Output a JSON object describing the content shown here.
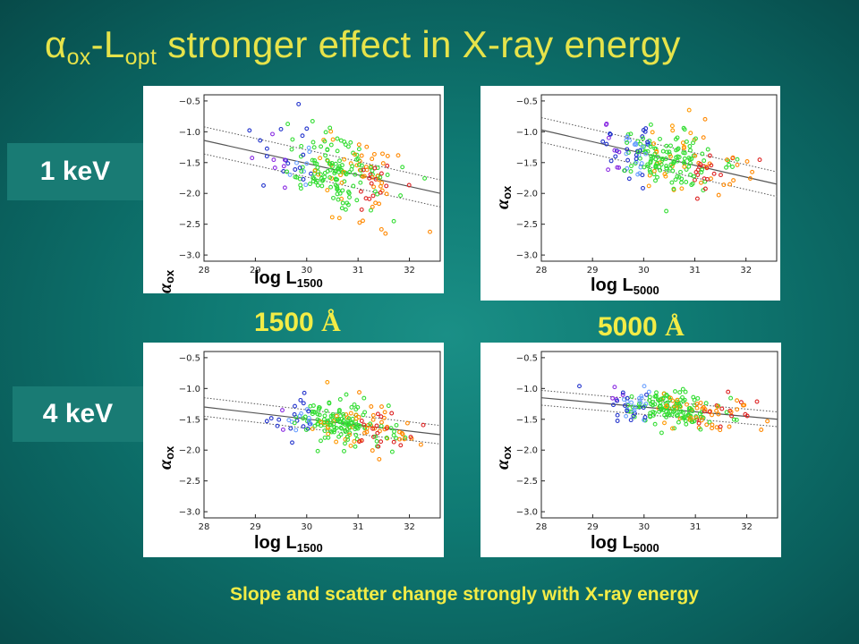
{
  "slide": {
    "title": {
      "alpha": "α",
      "sub1": "ox",
      "mid": "-L",
      "sub2": "opt",
      "rest": " stronger effect in ",
      "xray": "X-ray energy"
    },
    "rows": [
      {
        "label": "1 keV"
      },
      {
        "label": "4 keV"
      }
    ],
    "wavelengths": [
      {
        "value": "1500 ",
        "unit": "Å"
      },
      {
        "value": "5000 ",
        "unit": "Å"
      }
    ],
    "caption": "Slope and scatter change strongly with X-ray energy",
    "colors": {
      "title": "#e6e34a",
      "caption": "#f2ec46",
      "energy_box": "#197b74",
      "fit_line": "#555555"
    }
  },
  "chart_data": [
    {
      "type": "scatter",
      "panel": "1keV-1500",
      "ylabel": {
        "sym": "α",
        "sub": "ox"
      },
      "xlabel": {
        "base": "log L",
        "sub": "1500"
      },
      "xlim": [
        28,
        32.6
      ],
      "ylim": [
        -3.1,
        -0.4
      ],
      "xticks": [
        "28",
        "29",
        "30",
        "31",
        "32"
      ],
      "yticks": [
        "−0.5",
        "−1.0",
        "−1.5",
        "−2.0",
        "−2.5",
        "−3.0"
      ],
      "fit": {
        "y_at_28": -1.14,
        "y_at_32_6": -2.0,
        "band": 0.22
      },
      "center": [
        30.6,
        -1.72
      ],
      "spread": [
        0.6,
        0.28
      ]
    },
    {
      "type": "scatter",
      "panel": "1keV-5000",
      "ylabel": {
        "sym": "α",
        "sub": "ox"
      },
      "xlabel": {
        "base": "log L",
        "sub": "5000"
      },
      "xlim": [
        28,
        32.6
      ],
      "ylim": [
        -3.1,
        -0.4
      ],
      "xticks": [
        "28",
        "29",
        "30",
        "31",
        "32"
      ],
      "yticks": [
        "−0.5",
        "−1.0",
        "−1.5",
        "−2.0",
        "−2.5",
        "−3.0"
      ],
      "fit": {
        "y_at_28": -0.97,
        "y_at_32_6": -1.85,
        "band": 0.2
      },
      "center": [
        30.5,
        -1.45
      ],
      "spread": [
        0.65,
        0.22
      ]
    },
    {
      "type": "scatter",
      "panel": "4keV-1500",
      "ylabel": {
        "sym": "α",
        "sub": "ox"
      },
      "xlabel": {
        "base": "log L",
        "sub": "1500"
      },
      "xlim": [
        28,
        32.6
      ],
      "ylim": [
        -3.1,
        -0.4
      ],
      "xticks": [
        "28",
        "29",
        "30",
        "31",
        "32"
      ],
      "yticks": [
        "−0.5",
        "−1.0",
        "−1.5",
        "−2.0",
        "−2.5",
        "−3.0"
      ],
      "fit": {
        "y_at_28": -1.3,
        "y_at_32_6": -1.75,
        "band": 0.15
      },
      "center": [
        30.7,
        -1.55
      ],
      "spread": [
        0.6,
        0.16
      ]
    },
    {
      "type": "scatter",
      "panel": "4keV-5000",
      "ylabel": {
        "sym": "α",
        "sub": "ox"
      },
      "xlabel": {
        "base": "log L",
        "sub": "5000"
      },
      "xlim": [
        28,
        32.6
      ],
      "ylim": [
        -3.1,
        -0.4
      ],
      "xticks": [
        "28",
        "29",
        "30",
        "31",
        "32"
      ],
      "yticks": [
        "−0.5",
        "−1.0",
        "−1.5",
        "−2.0",
        "−2.5",
        "−3.0"
      ],
      "fit": {
        "y_at_28": -1.15,
        "y_at_32_6": -1.5,
        "band": 0.12
      },
      "center": [
        30.6,
        -1.33
      ],
      "spread": [
        0.65,
        0.13
      ]
    }
  ]
}
